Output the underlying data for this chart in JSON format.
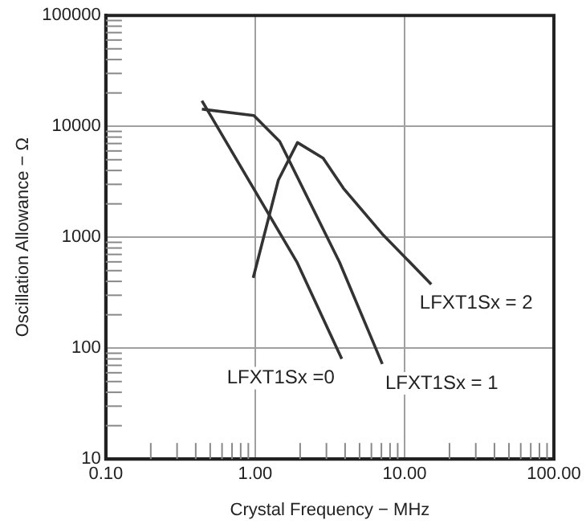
{
  "chart_data": {
    "type": "line",
    "xlabel": "Crystal Frequency − MHz",
    "ylabel": "Oscillation Allowance − Ω",
    "log": "xy",
    "grid": true,
    "legend": false,
    "marker": "none",
    "line_style": "solid",
    "xlim": [
      0.1,
      100
    ],
    "ylim": [
      10,
      100000
    ],
    "xticks": [
      {
        "value": 0.1,
        "label": "0.10"
      },
      {
        "value": 0.2,
        "label": null
      },
      {
        "value": 0.3,
        "label": null
      },
      {
        "value": 0.4,
        "label": null
      },
      {
        "value": 0.5,
        "label": null
      },
      {
        "value": 0.6,
        "label": null
      },
      {
        "value": 0.7,
        "label": null
      },
      {
        "value": 0.8,
        "label": null
      },
      {
        "value": 0.9,
        "label": null
      },
      {
        "value": 1,
        "label": "1.00"
      },
      {
        "value": 2,
        "label": null
      },
      {
        "value": 3,
        "label": null
      },
      {
        "value": 4,
        "label": null
      },
      {
        "value": 5,
        "label": null
      },
      {
        "value": 6,
        "label": null
      },
      {
        "value": 7,
        "label": null
      },
      {
        "value": 8,
        "label": null
      },
      {
        "value": 9,
        "label": null
      },
      {
        "value": 10,
        "label": "10.00"
      },
      {
        "value": 20,
        "label": null
      },
      {
        "value": 30,
        "label": null
      },
      {
        "value": 40,
        "label": null
      },
      {
        "value": 50,
        "label": null
      },
      {
        "value": 60,
        "label": null
      },
      {
        "value": 70,
        "label": null
      },
      {
        "value": 80,
        "label": null
      },
      {
        "value": 90,
        "label": null
      },
      {
        "value": 100,
        "label": "100.00"
      }
    ],
    "yticks": [
      10,
      {
        "value": 20,
        "label": null
      },
      {
        "value": 30,
        "label": null
      },
      {
        "value": 40,
        "label": null
      },
      {
        "value": 50,
        "label": null
      },
      {
        "value": 60,
        "label": null
      },
      {
        "value": 70,
        "label": null
      },
      {
        "value": 80,
        "label": null
      },
      {
        "value": 90,
        "label": null
      },
      100,
      {
        "value": 200,
        "label": null
      },
      {
        "value": 300,
        "label": null
      },
      {
        "value": 400,
        "label": null
      },
      {
        "value": 500,
        "label": null
      },
      {
        "value": 600,
        "label": null
      },
      {
        "value": 700,
        "label": null
      },
      {
        "value": 800,
        "label": null
      },
      {
        "value": 900,
        "label": null
      },
      1000,
      {
        "value": 2000,
        "label": null
      },
      {
        "value": 3000,
        "label": null
      },
      {
        "value": 4000,
        "label": null
      },
      {
        "value": 5000,
        "label": null
      },
      {
        "value": 6000,
        "label": null
      },
      {
        "value": 7000,
        "label": null
      },
      {
        "value": 8000,
        "label": null
      },
      {
        "value": 9000,
        "label": null
      },
      10000,
      {
        "value": 20000,
        "label": null
      },
      {
        "value": 30000,
        "label": null
      },
      {
        "value": 40000,
        "label": null
      },
      {
        "value": 50000,
        "label": null
      },
      {
        "value": 60000,
        "label": null
      },
      {
        "value": 70000,
        "label": null
      },
      {
        "value": 80000,
        "label": null
      },
      {
        "value": 90000,
        "label": null
      },
      100000
    ],
    "series": [
      {
        "name": "LFXT1Sx =0",
        "color": "#333333",
        "x": [
          0.44,
          1.9,
          3.8
        ],
        "values": [
          17000,
          600,
          80
        ]
      },
      {
        "name": "LFXT1Sx = 1",
        "color": "#333333",
        "x": [
          0.44,
          0.98,
          1.46,
          3.66,
          7.1
        ],
        "values": [
          14300,
          12500,
          7300,
          600,
          72
        ]
      },
      {
        "name": "LFXT1Sx = 2",
        "color": "#333333",
        "x": [
          0.97,
          1.43,
          1.92,
          2.85,
          3.9,
          7.1,
          15.1
        ],
        "values": [
          430,
          3280,
          7140,
          5170,
          2760,
          1070,
          377
        ]
      }
    ]
  }
}
